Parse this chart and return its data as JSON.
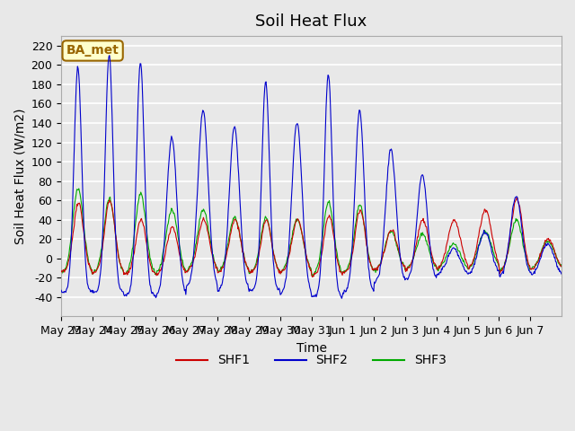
{
  "title": "Soil Heat Flux",
  "ylabel": "Soil Heat Flux (W/m2)",
  "xlabel": "Time",
  "ylim": [
    -60,
    230
  ],
  "yticks": [
    -40,
    -20,
    0,
    20,
    40,
    60,
    80,
    100,
    120,
    140,
    160,
    180,
    200,
    220
  ],
  "background_color": "#e8e8e8",
  "plot_bg_color": "#e8e8e8",
  "grid_color": "white",
  "shf1_color": "#cc0000",
  "shf2_color": "#0000cc",
  "shf3_color": "#00aa00",
  "legend_label1": "SHF1",
  "legend_label2": "SHF2",
  "legend_label3": "SHF3",
  "box_label": "BA_met",
  "box_facecolor": "#ffffcc",
  "box_edgecolor": "#996600",
  "num_days": 16,
  "title_fontsize": 13,
  "axis_label_fontsize": 10,
  "tick_fontsize": 9,
  "tick_labels": [
    "May 23",
    "May 24",
    "May 25",
    "May 26",
    "May 27",
    "May 28",
    "May 29",
    "May 30",
    "May 31",
    "Jun 1",
    "Jun 2",
    "Jun 3",
    "Jun 4",
    "Jun 5",
    "Jun 6",
    "Jun 7"
  ],
  "shf2_day_peaks": [
    198,
    210,
    203,
    125,
    153,
    136,
    183,
    141,
    190,
    153,
    113,
    87,
    10,
    28,
    64,
    15
  ],
  "shf2_day_troughs": [
    -35,
    -35,
    -38,
    -40,
    -30,
    -35,
    -33,
    -38,
    -40,
    -35,
    -25,
    -22,
    -18,
    -18,
    -20,
    -18
  ],
  "shf2_widths": [
    3,
    3,
    3,
    4,
    4,
    4,
    3,
    4,
    3,
    3.5,
    4,
    4,
    5,
    5,
    4.5,
    5
  ],
  "shf1_day_peaks": [
    57,
    60,
    40,
    32,
    40,
    40,
    40,
    40,
    44,
    50,
    30,
    40,
    40,
    50,
    62,
    20
  ],
  "shf1_day_troughs": [
    -15,
    -15,
    -17,
    -18,
    -14,
    -15,
    -15,
    -15,
    -18,
    -15,
    -12,
    -12,
    -12,
    -12,
    -15,
    -12
  ],
  "shf1_widths": [
    4,
    4,
    4,
    4.5,
    4.5,
    4.5,
    4,
    4.5,
    4,
    4,
    4.5,
    4.5,
    5,
    5,
    4.5,
    5
  ],
  "shf3_day_peaks": [
    72,
    62,
    67,
    50,
    50,
    42,
    42,
    40,
    58,
    55,
    28,
    25,
    15,
    28,
    40,
    18
  ],
  "shf3_day_troughs": [
    -16,
    -16,
    -17,
    -18,
    -15,
    -15,
    -15,
    -15,
    -18,
    -15,
    -13,
    -12,
    -12,
    -12,
    -14,
    -12
  ],
  "shf3_widths": [
    4.2,
    4.2,
    4.2,
    4.7,
    4.7,
    4.7,
    4.2,
    4.7,
    4.2,
    4.2,
    4.7,
    4.7,
    5.2,
    5.2,
    4.7,
    5.2
  ]
}
